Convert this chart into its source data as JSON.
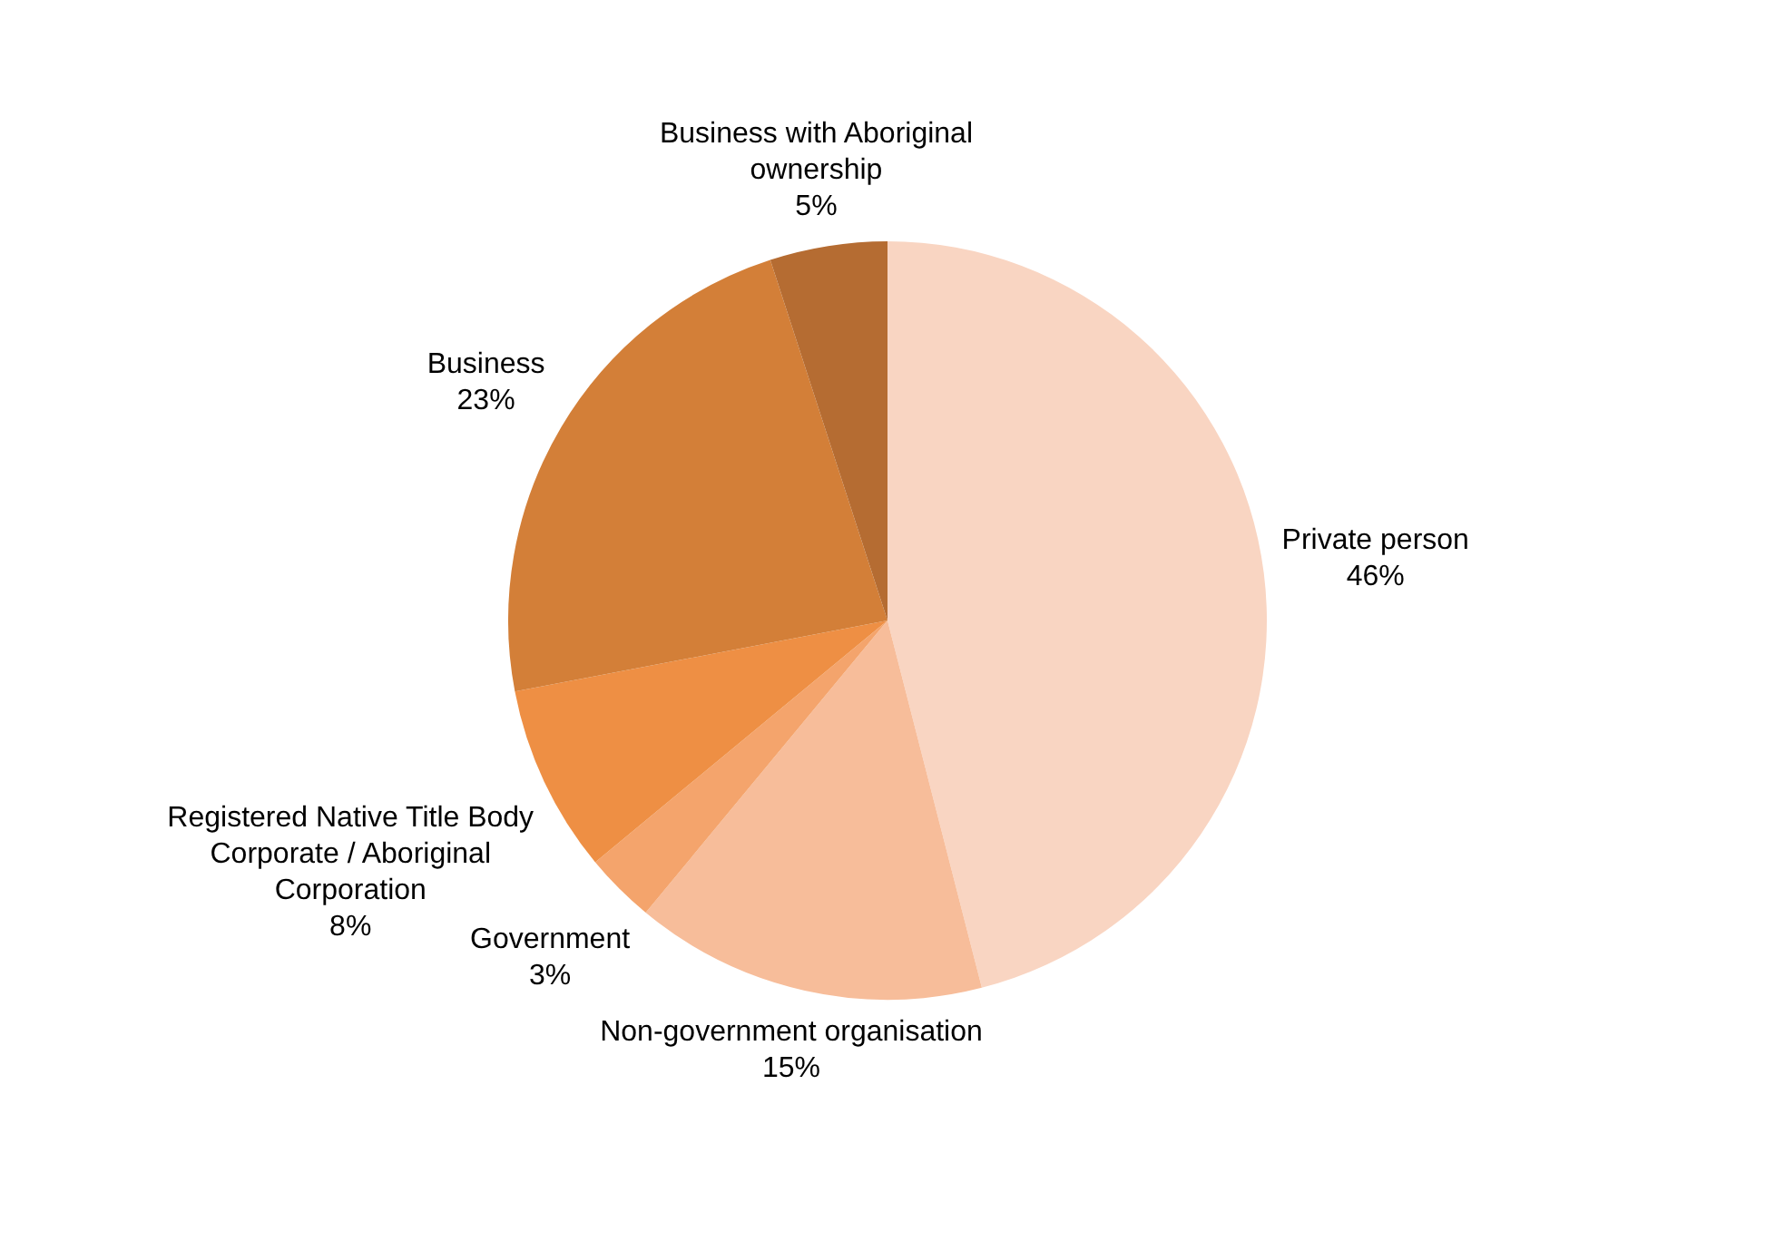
{
  "chart_data": {
    "type": "pie",
    "categories": [
      "Private person",
      "Non-government organisation",
      "Government",
      "Registered Native Title Body Corporate / Aboriginal Corporation",
      "Business",
      "Business with Aboriginal ownership"
    ],
    "values": [
      46,
      15,
      3,
      8,
      23,
      5
    ],
    "value_labels": [
      "46%",
      "15%",
      "3%",
      "8%",
      "23%",
      "5%"
    ],
    "colors": [
      "#f9d5c2",
      "#f7bd9a",
      "#f4a46c",
      "#ee8f44",
      "#d37f38",
      "#b56c32"
    ],
    "legend": false
  }
}
